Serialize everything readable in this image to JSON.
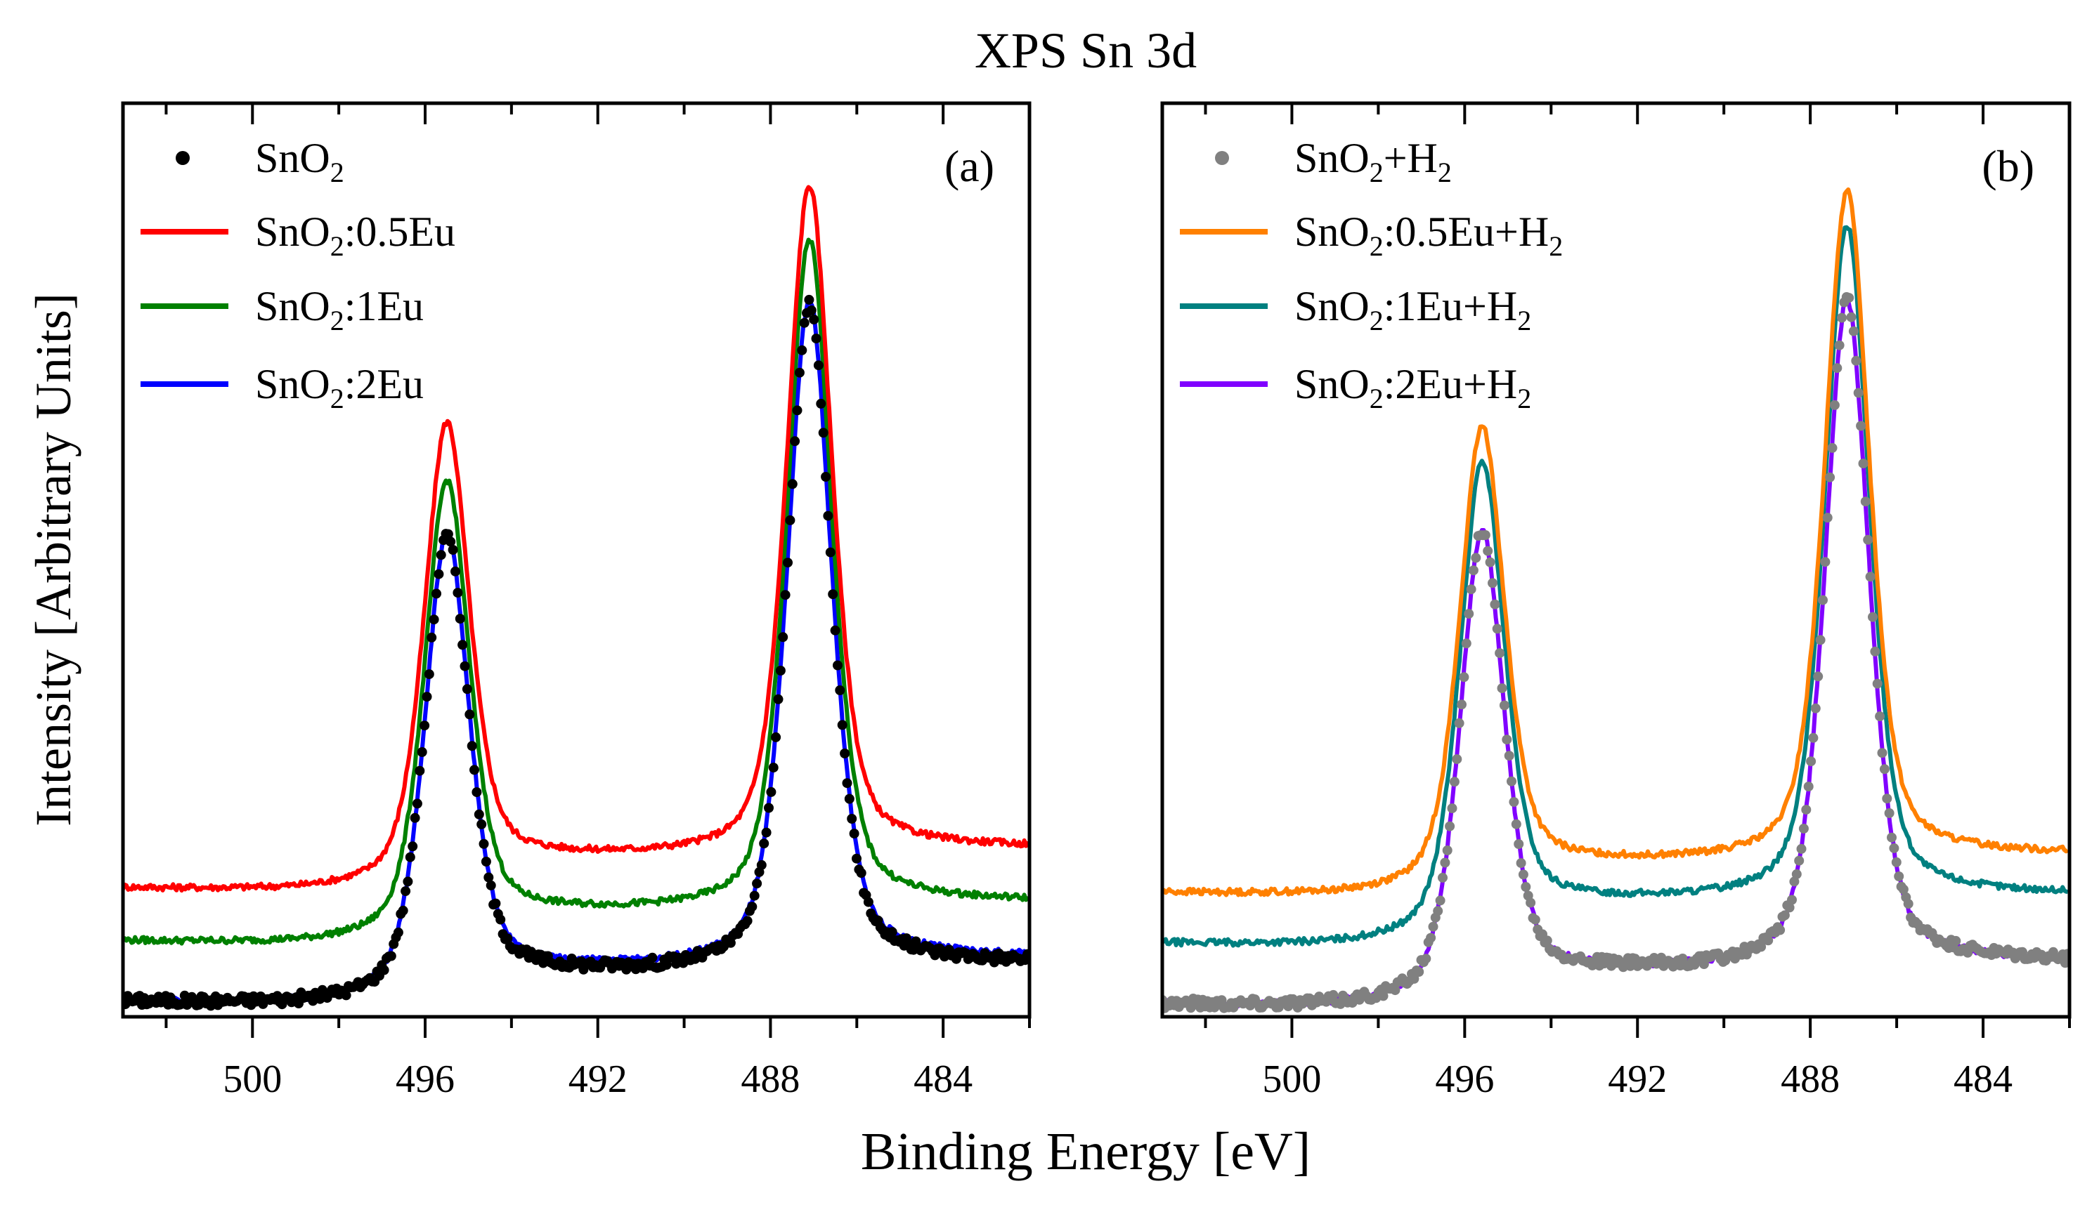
{
  "chart_data": {
    "type": "line",
    "title": "XPS Sn 3d",
    "xlabel": "Binding Energy [eV]",
    "ylabel": "Intensity [Arbitrary Units]",
    "xlim": [
      503,
      482
    ],
    "ylim": [
      0,
      100
    ],
    "x_ticks": [
      500,
      496,
      492,
      488,
      484
    ],
    "x_tick_labels": [
      "500",
      "496",
      "492",
      "488",
      "484"
    ],
    "x_minor_step": 2,
    "y_ticks": [],
    "grid": false,
    "legend_placement": "top-left",
    "panels": [
      {
        "label": "(a)",
        "peak_centers": [
          495.5,
          487.1
        ],
        "series": [
          {
            "name": "SnO2",
            "style": "scatter",
            "color": "#000000",
            "baseline": [
              6.0,
              2.2,
              1.0
            ],
            "peak_heights": [
              49.5,
              72.5
            ]
          },
          {
            "name": "SnO2:0.5Eu",
            "style": "line",
            "color": "#ff0000",
            "baseline": [
              18.6,
              14.5,
              13.4
            ],
            "peak_heights": [
              49.5,
              73
            ]
          },
          {
            "name": "SnO2:1Eu",
            "style": "line",
            "color": "#008000",
            "baseline": [
              12.7,
              8.8,
              7.6
            ],
            "peak_heights": [
              49,
              73
            ]
          },
          {
            "name": "SnO2:2Eu",
            "style": "line",
            "color": "#0000ff",
            "baseline": [
              6.6,
              2.2,
              1.0
            ],
            "peak_heights": [
              49.5,
              72.5
            ]
          }
        ]
      },
      {
        "label": "(b)",
        "peak_centers": [
          495.6,
          487.15
        ],
        "series": [
          {
            "name": "SnO2+H2",
            "style": "scatter",
            "color": "#808080",
            "baseline": [
              6.1,
              1.8,
              0.7
            ],
            "peak_heights": [
              50,
              73
            ]
          },
          {
            "name": "SnO2:0.5Eu+H2",
            "style": "line",
            "color": "#ff8000",
            "baseline": [
              17.9,
              13.9,
              12.9
            ],
            "peak_heights": [
              49.5,
              73
            ]
          },
          {
            "name": "SnO2:1Eu+H2",
            "style": "line",
            "color": "#008080",
            "baseline": [
              13.5,
              8.0,
              7.3
            ],
            "peak_heights": [
              50.5,
              73.5
            ]
          },
          {
            "name": "SnO2:2Eu+H2",
            "style": "line",
            "color": "#8000ff",
            "baseline": [
              6.1,
              1.8,
              0.7
            ],
            "peak_heights": [
              50,
              73
            ]
          }
        ]
      }
    ]
  }
}
